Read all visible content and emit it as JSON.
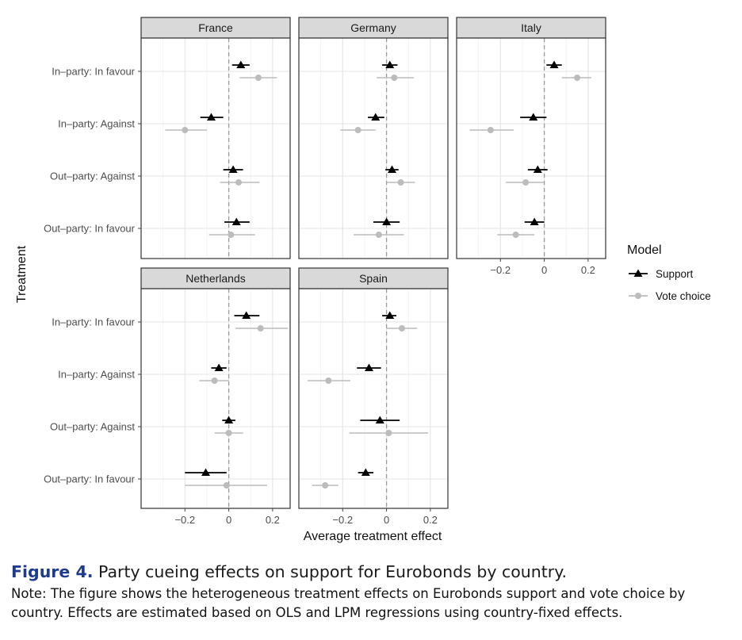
{
  "chart_data": {
    "type": "scatter",
    "subtype": "faceted coefficient plot with horizontal error bars",
    "facets": [
      "France",
      "Germany",
      "Italy",
      "Netherlands",
      "Spain"
    ],
    "categories": [
      "In–party: In favour",
      "In–party: Against",
      "Out–party: Against",
      "Out–party: In favour"
    ],
    "xlabel": "Average treatment effect",
    "ylabel": "Treatment",
    "xlim": [
      -0.4,
      0.28
    ],
    "xticks": [
      -0.2,
      0,
      0.2
    ],
    "xtick_labels": [
      "−0.2",
      "0",
      "0.2"
    ],
    "reference_line": 0,
    "grid": true,
    "legend": {
      "title": "Model",
      "position": "right",
      "entries": [
        {
          "name": "Support",
          "shape": "triangle",
          "color": "#000000"
        },
        {
          "name": "Vote choice",
          "shape": "circle",
          "color": "#bcbcbc"
        }
      ]
    },
    "series": [
      {
        "name": "Support",
        "color": "#000000",
        "facets": {
          "France": [
            {
              "est": 0.055,
              "lo": 0.015,
              "hi": 0.095
            },
            {
              "est": -0.08,
              "lo": -0.13,
              "hi": -0.025
            },
            {
              "est": 0.02,
              "lo": -0.025,
              "hi": 0.065
            },
            {
              "est": 0.035,
              "lo": -0.02,
              "hi": 0.095
            }
          ],
          "Germany": [
            {
              "est": 0.015,
              "lo": -0.02,
              "hi": 0.05
            },
            {
              "est": -0.05,
              "lo": -0.085,
              "hi": -0.01
            },
            {
              "est": 0.025,
              "lo": -0.005,
              "hi": 0.055
            },
            {
              "est": 0.0,
              "lo": -0.06,
              "hi": 0.06
            }
          ],
          "Italy": [
            {
              "est": 0.045,
              "lo": 0.01,
              "hi": 0.08
            },
            {
              "est": -0.05,
              "lo": -0.11,
              "hi": 0.01
            },
            {
              "est": -0.03,
              "lo": -0.075,
              "hi": 0.015
            },
            {
              "est": -0.045,
              "lo": -0.09,
              "hi": 0.0
            }
          ],
          "Netherlands": [
            {
              "est": 0.08,
              "lo": 0.025,
              "hi": 0.14
            },
            {
              "est": -0.045,
              "lo": -0.08,
              "hi": -0.01
            },
            {
              "est": 0.0,
              "lo": -0.03,
              "hi": 0.03
            },
            {
              "est": -0.105,
              "lo": -0.2,
              "hi": -0.01
            }
          ],
          "Spain": [
            {
              "est": 0.015,
              "lo": -0.02,
              "hi": 0.045
            },
            {
              "est": -0.08,
              "lo": -0.135,
              "hi": -0.025
            },
            {
              "est": -0.03,
              "lo": -0.12,
              "hi": 0.06
            },
            {
              "est": -0.095,
              "lo": -0.13,
              "hi": -0.06
            }
          ]
        }
      },
      {
        "name": "Vote choice",
        "color": "#bcbcbc",
        "facets": {
          "France": [
            {
              "est": 0.135,
              "lo": 0.05,
              "hi": 0.22
            },
            {
              "est": -0.2,
              "lo": -0.29,
              "hi": -0.1
            },
            {
              "est": 0.045,
              "lo": -0.04,
              "hi": 0.14
            },
            {
              "est": 0.01,
              "lo": -0.09,
              "hi": 0.12
            }
          ],
          "Germany": [
            {
              "est": 0.035,
              "lo": -0.045,
              "hi": 0.125
            },
            {
              "est": -0.13,
              "lo": -0.21,
              "hi": -0.05
            },
            {
              "est": 0.065,
              "lo": 0.0,
              "hi": 0.13
            },
            {
              "est": -0.035,
              "lo": -0.15,
              "hi": 0.08
            }
          ],
          "Italy": [
            {
              "est": 0.15,
              "lo": 0.08,
              "hi": 0.215
            },
            {
              "est": -0.245,
              "lo": -0.34,
              "hi": -0.14
            },
            {
              "est": -0.085,
              "lo": -0.175,
              "hi": 0.0
            },
            {
              "est": -0.13,
              "lo": -0.215,
              "hi": -0.045
            }
          ],
          "Netherlands": [
            {
              "est": 0.145,
              "lo": 0.03,
              "hi": 0.27
            },
            {
              "est": -0.065,
              "lo": -0.135,
              "hi": 0.0
            },
            {
              "est": 0.0,
              "lo": -0.065,
              "hi": 0.065
            },
            {
              "est": -0.01,
              "lo": -0.2,
              "hi": 0.175
            }
          ],
          "Spain": [
            {
              "est": 0.07,
              "lo": 0.0,
              "hi": 0.14
            },
            {
              "est": -0.265,
              "lo": -0.36,
              "hi": -0.165
            },
            {
              "est": 0.01,
              "lo": -0.17,
              "hi": 0.19
            },
            {
              "est": -0.28,
              "lo": -0.34,
              "hi": -0.22
            }
          ]
        }
      }
    ]
  },
  "caption": {
    "figure_label": "Figure 4.",
    "title": "Party cueing effects on support for Eurobonds by country.",
    "note": "Note: The figure shows the heterogeneous treatment effects on Eurobonds support and vote choice by country. Effects are estimated based on OLS and LPM regressions using country-fixed effects."
  }
}
